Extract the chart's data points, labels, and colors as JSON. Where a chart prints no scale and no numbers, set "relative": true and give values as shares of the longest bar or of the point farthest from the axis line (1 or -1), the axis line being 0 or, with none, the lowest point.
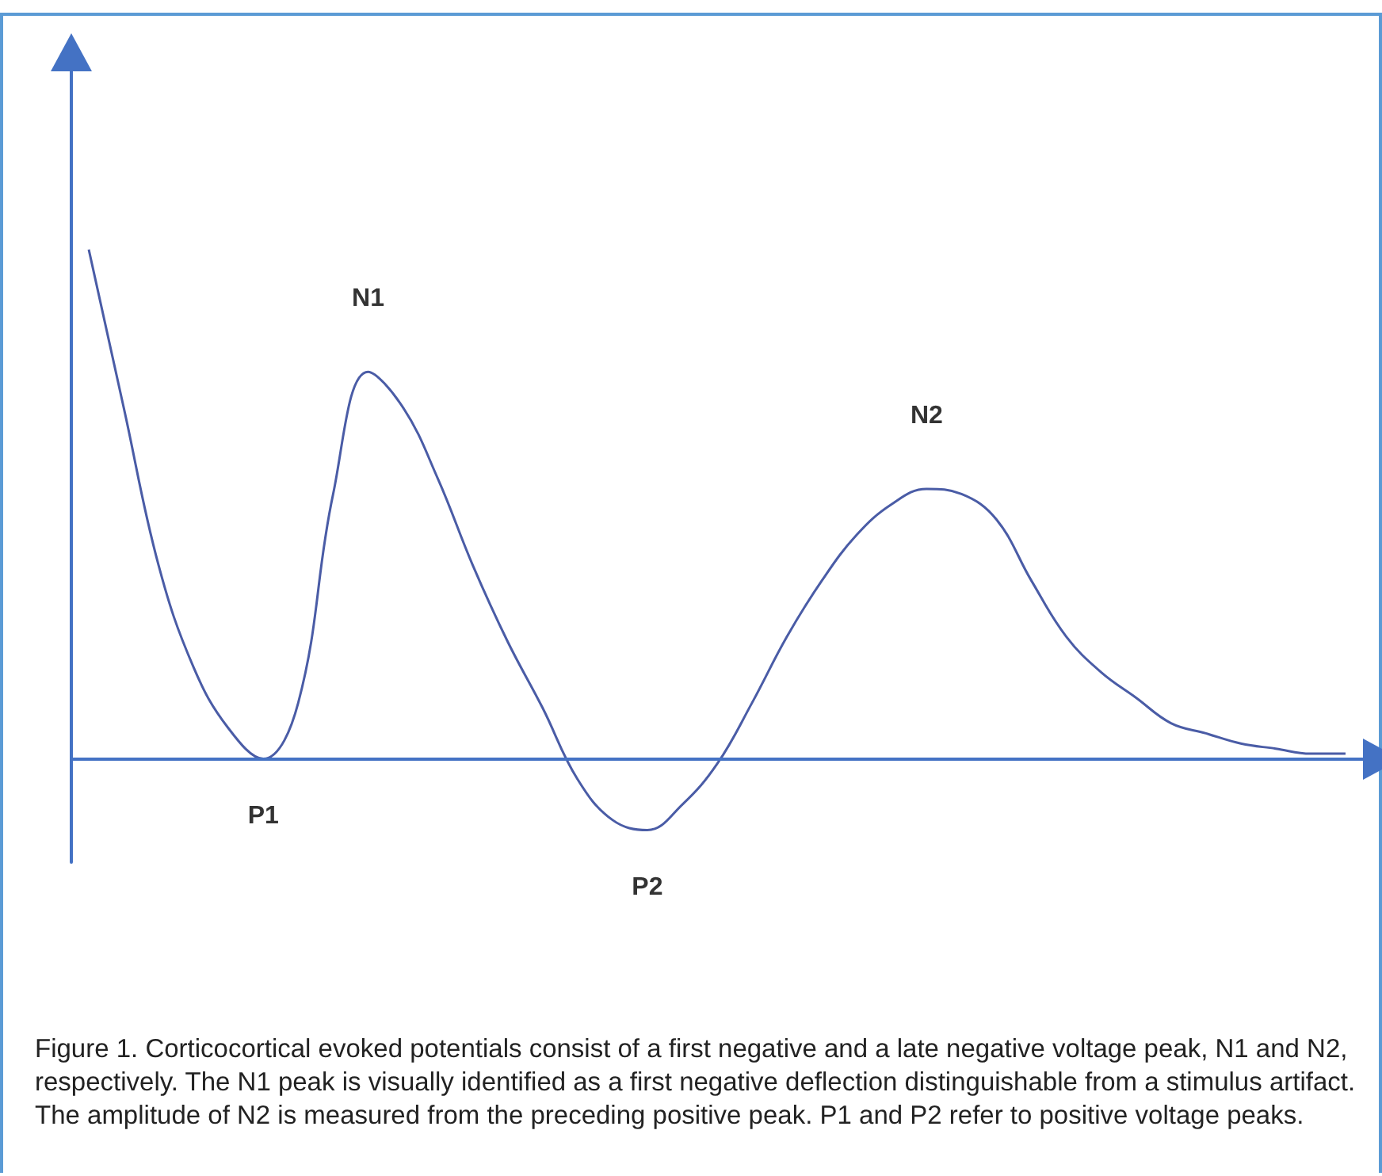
{
  "chart_data": {
    "type": "line",
    "relative": true,
    "color": "#4a5ca6",
    "marker": "none",
    "grid": false,
    "ref_lines": [
      {
        "axis": "y",
        "value": 0,
        "color": "#4472c4"
      }
    ],
    "categories": [
      null,
      null,
      null,
      null,
      null,
      null,
      null,
      null,
      null,
      null,
      null,
      null,
      null,
      null,
      null,
      null,
      null,
      null,
      null,
      null,
      null,
      null,
      null,
      null,
      null,
      null,
      null,
      null,
      null,
      null,
      null,
      null,
      null,
      null,
      null,
      null,
      null
    ],
    "values": [
      1,
      0.69,
      0.38,
      0.18,
      0.06,
      0,
      0.11,
      0.52,
      0.76,
      0.69,
      0.55,
      0.38,
      0.23,
      0.1,
      -0.04,
      -0.12,
      -0.14,
      -0.09,
      -0.01,
      0.11,
      0.24,
      0.35,
      0.44,
      0.5,
      0.53,
      0.52,
      0.47,
      0.35,
      0.24,
      0.17,
      0.12,
      0.07,
      0.05,
      0.03,
      0.02,
      0.01,
      0.01
    ],
    "annotations": [
      {
        "text": "N1",
        "y": 0.76
      },
      {
        "text": "P1",
        "y": 0
      },
      {
        "text": "P2",
        "y": -0.14
      },
      {
        "text": "N2",
        "y": 0.53
      },
      "Figure 1.  Corticocortical evoked potentials consist of a first negative and a late negative voltage peak, N1 and N2, respectively. The N1 peak is visually identified as a first negative deflection distinguishable from a stimulus artifact. The amplitude of N2 is measured from the preceding positive peak. P1 and P2 refer to positive voltage peaks."
    ]
  }
}
